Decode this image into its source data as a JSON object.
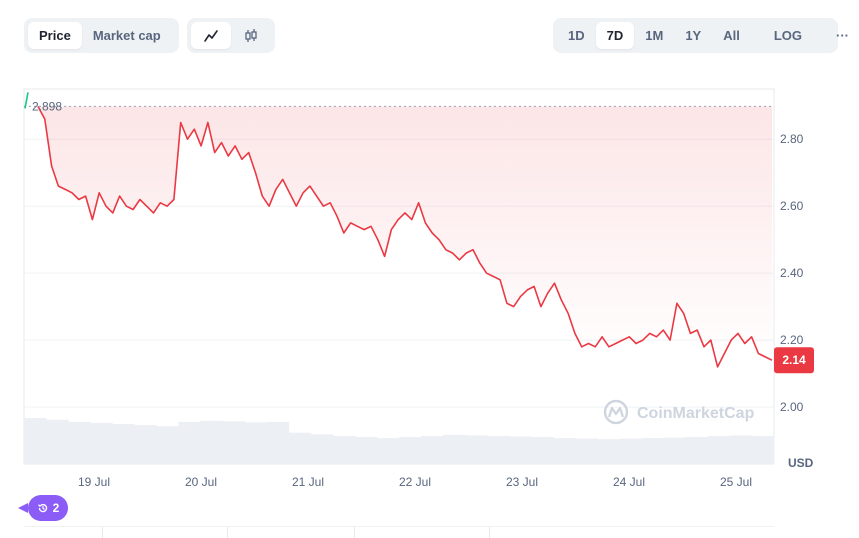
{
  "controls": {
    "tabs": [
      "Price",
      "Market cap"
    ],
    "view_icons": [
      "line-chart-icon",
      "candlestick-icon"
    ],
    "ranges": [
      "1D",
      "7D",
      "1M",
      "1Y",
      "All"
    ],
    "log_label": "LOG",
    "more_label": "···"
  },
  "watermark": "CoinMarketCap",
  "history_badge": "2",
  "chart_data": {
    "type": "line",
    "series": [
      {
        "values": [
          2.898,
          2.86,
          2.72,
          2.66,
          2.65,
          2.64,
          2.62,
          2.63,
          2.56,
          2.64,
          2.6,
          2.58,
          2.63,
          2.6,
          2.59,
          2.62,
          2.6,
          2.58,
          2.61,
          2.6,
          2.62,
          2.85,
          2.8,
          2.83,
          2.78,
          2.85,
          2.76,
          2.79,
          2.75,
          2.78,
          2.74,
          2.76,
          2.7,
          2.63,
          2.6,
          2.65,
          2.68,
          2.64,
          2.6,
          2.64,
          2.66,
          2.63,
          2.6,
          2.61,
          2.57,
          2.52,
          2.55,
          2.54,
          2.53,
          2.54,
          2.5,
          2.45,
          2.53,
          2.56,
          2.58,
          2.56,
          2.61,
          2.55,
          2.52,
          2.5,
          2.47,
          2.46,
          2.44,
          2.46,
          2.47,
          2.43,
          2.4,
          2.39,
          2.38,
          2.31,
          2.3,
          2.33,
          2.35,
          2.36,
          2.3,
          2.34,
          2.37,
          2.32,
          2.28,
          2.22,
          2.18,
          2.19,
          2.18,
          2.21,
          2.18,
          2.19,
          2.2,
          2.21,
          2.19,
          2.2,
          2.22,
          2.21,
          2.23,
          2.2,
          2.31,
          2.28,
          2.22,
          2.23,
          2.18,
          2.2,
          2.12,
          2.16,
          2.2,
          2.22,
          2.19,
          2.21,
          2.16,
          2.15,
          2.14
        ]
      }
    ],
    "x_ticks": [
      "19 Jul",
      "20 Jul",
      "21 Jul",
      "22 Jul",
      "23 Jul",
      "24 Jul",
      "25 Jul"
    ],
    "y_ticks": [
      "2.00",
      "2.20",
      "2.40",
      "2.60",
      "2.80"
    ],
    "ylim": [
      1.83,
      2.95
    ],
    "y_unit": "USD",
    "open_value": "2.898",
    "current_value": "2.14",
    "volume": [
      0.85,
      0.82,
      0.78,
      0.76,
      0.74,
      0.72,
      0.7,
      0.78,
      0.8,
      0.79,
      0.77,
      0.78,
      0.58,
      0.55,
      0.52,
      0.5,
      0.48,
      0.5,
      0.52,
      0.54,
      0.53,
      0.52,
      0.51,
      0.5,
      0.48,
      0.47,
      0.46,
      0.47,
      0.48,
      0.49,
      0.5,
      0.52,
      0.53,
      0.52
    ],
    "colors": {
      "line": "#ea3943",
      "gain": "#16c784",
      "grid": "#eff2f5",
      "volume": "#eceff3",
      "badge": "#8b5cf6"
    }
  }
}
